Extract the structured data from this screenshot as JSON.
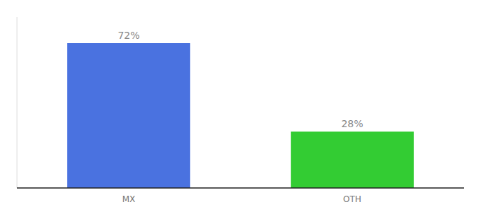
{
  "chart_data": {
    "type": "bar",
    "categories": [
      "MX",
      "OTH"
    ],
    "values": [
      72,
      28
    ],
    "value_labels": [
      "72%",
      "28%"
    ],
    "colors": [
      "#4a72e0",
      "#33cc33"
    ],
    "ylim": [
      0,
      85
    ],
    "grid": false,
    "data_labels": true,
    "tick_labels": "x"
  }
}
